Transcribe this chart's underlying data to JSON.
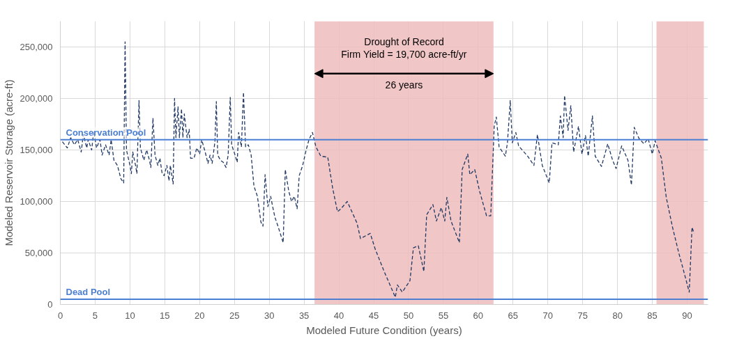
{
  "chart_data": {
    "type": "line",
    "xlabel": "Modeled Future Condition (years)",
    "ylabel": "Modeled Reservoir Storage (acre-ft)",
    "xlim": [
      0,
      93
    ],
    "ylim": [
      0,
      275000
    ],
    "xticks": [
      0,
      5,
      10,
      15,
      20,
      25,
      30,
      35,
      40,
      45,
      50,
      55,
      60,
      65,
      70,
      75,
      80,
      85,
      90
    ],
    "yticks": [
      {
        "value": 0,
        "label": "0"
      },
      {
        "value": 50000,
        "label": "50,000"
      },
      {
        "value": 100000,
        "label": "100,000"
      },
      {
        "value": 150000,
        "label": "150,000"
      },
      {
        "value": 200000,
        "label": "200,000"
      },
      {
        "value": 250000,
        "label": "250,000"
      }
    ],
    "grid": true,
    "line_style": "dashed",
    "marker": "none",
    "series": [
      {
        "color": "#1f3864",
        "x": [
          0.3,
          1,
          1.5,
          2,
          2.5,
          3,
          3.3,
          3.8,
          4,
          4.5,
          4.8,
          5.2,
          5.7,
          6,
          6.5,
          7,
          7.3,
          7.7,
          8.2,
          8.7,
          9.1,
          9.3,
          9.5,
          10,
          10.2,
          10.4,
          10.8,
          11,
          11.3,
          11.5,
          12,
          12.4,
          12.8,
          13,
          13.3,
          13.6,
          14,
          14.3,
          14.6,
          14.9,
          15.3,
          15.6,
          15.8,
          16.2,
          16.4,
          16.6,
          16.9,
          17.1,
          17.4,
          17.6,
          17.8,
          18.2,
          18.5,
          18.7,
          19.2,
          19.6,
          20,
          20.3,
          20.8,
          21.2,
          21.5,
          21.8,
          22.2,
          22.4,
          22.6,
          23,
          23.4,
          23.8,
          24.1,
          24.4,
          24.6,
          25,
          25.4,
          25.6,
          26,
          26.3,
          26.6,
          27,
          27.4,
          27.8,
          28.3,
          28.8,
          29.1,
          29.4,
          29.8,
          30.2,
          30.4,
          30.8,
          31.3,
          32,
          32.3,
          32.8,
          33.2,
          33.6,
          34,
          34.3,
          34.8,
          35.3,
          35.7,
          36.2,
          36.7,
          37.4,
          38.4,
          39.1,
          39.8,
          40.3,
          41.2,
          42.6,
          43.1,
          44.5,
          45.2,
          46.5,
          48.1,
          48.4,
          49.1,
          50.2,
          50.7,
          51.4,
          52.2,
          52.6,
          53.5,
          54,
          54.7,
          55.2,
          55.5,
          56.1,
          57.3,
          57.7,
          58.5,
          58.8,
          59.5,
          60.2,
          61.2,
          61.8,
          62.3,
          62.6,
          63,
          63.9,
          64.2,
          64.6,
          64.9,
          65.4,
          65.8,
          67.1,
          68,
          68.5,
          69.2,
          70.2,
          70.6,
          71.5,
          71.8,
          72.2,
          72.4,
          72.9,
          73.3,
          73.7,
          74.4,
          74.9,
          75.4,
          75.8,
          76.4,
          76.8,
          77.7,
          78.6,
          79.3,
          79.8,
          80.6,
          81.5,
          82,
          82.4,
          83.1,
          83.8,
          84.4,
          85,
          85.4,
          86.3,
          87,
          87.9,
          88.8,
          89.6,
          90.3,
          90.7,
          91
        ],
        "values": [
          158000,
          152000,
          162000,
          155000,
          160000,
          148000,
          165000,
          152000,
          160000,
          150000,
          168000,
          152000,
          160000,
          145000,
          155000,
          145000,
          160000,
          140000,
          135000,
          122000,
          118000,
          255000,
          150000,
          135000,
          127000,
          148000,
          135000,
          127000,
          198000,
          152000,
          140000,
          150000,
          140000,
          133000,
          181000,
          145000,
          135000,
          142000,
          128000,
          125000,
          135000,
          120000,
          135000,
          117000,
          200000,
          162000,
          192000,
          162000,
          190000,
          162000,
          185000,
          162000,
          170000,
          142000,
          142000,
          152000,
          146000,
          160000,
          148000,
          137000,
          145000,
          137000,
          158000,
          197000,
          145000,
          140000,
          138000,
          133000,
          145000,
          201000,
          155000,
          147000,
          138000,
          167000,
          153000,
          206000,
          153000,
          155000,
          145000,
          115000,
          105000,
          80000,
          76000,
          126000,
          95000,
          105000,
          98000,
          85000,
          75000,
          60000,
          131000,
          110000,
          100000,
          105000,
          93000,
          125000,
          135000,
          150000,
          160000,
          167000,
          153000,
          144000,
          143000,
          113000,
          90000,
          93000,
          100000,
          79000,
          64000,
          69000,
          54000,
          32000,
          7000,
          19000,
          12000,
          23000,
          55000,
          57000,
          32000,
          87000,
          97000,
          81000,
          94000,
          81000,
          104000,
          81000,
          60000,
          131000,
          146000,
          126000,
          131000,
          110000,
          86000,
          86000,
          173000,
          182000,
          153000,
          144000,
          157000,
          198000,
          157000,
          167000,
          154000,
          144000,
          135000,
          165000,
          135000,
          118000,
          157000,
          155000,
          183000,
          162000,
          203000,
          169000,
          193000,
          148000,
          173000,
          146000,
          164000,
          144000,
          183000,
          144000,
          134000,
          156000,
          140000,
          132000,
          154000,
          140000,
          116000,
          172000,
          161000,
          156000,
          161000,
          146000,
          159000,
          142000,
          104000,
          75000,
          50000,
          30000,
          12000,
          75000,
          69000
        ]
      }
    ],
    "ref_lines": [
      {
        "axis": "y",
        "value": 160000,
        "label": "Conservation Pool",
        "color": "#4a7fd4"
      },
      {
        "axis": "y",
        "value": 5000,
        "label": "Dead Pool",
        "color": "#4a7fd4"
      }
    ],
    "bands": [
      {
        "axis": "x",
        "from": 36.5,
        "to": 62.2,
        "color": "#efbcbc"
      },
      {
        "axis": "x",
        "from": 85.6,
        "to": 92.4,
        "color": "#efbcbc"
      }
    ],
    "annotations": [
      "Drought of Record",
      "Firm Yield = 19,700 acre-ft/yr",
      "26 years"
    ]
  }
}
